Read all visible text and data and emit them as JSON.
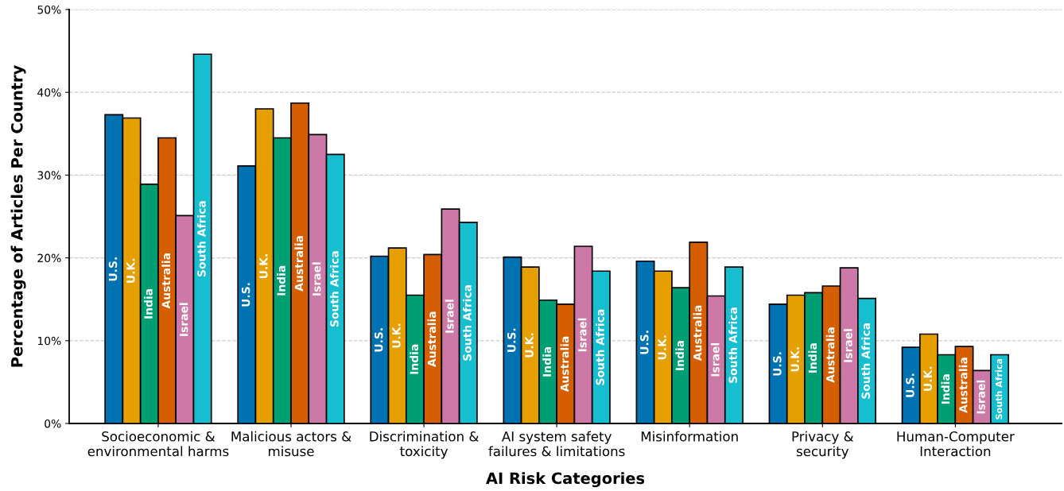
{
  "chart_data": {
    "type": "bar",
    "xlabel": "AI Risk Categories",
    "ylabel": "Percentage of Articles Per Country",
    "categories": [
      "Socioeconomic &\nenvironmental harms",
      "Malicious actors &\nmisuse",
      "Discrimination &\ntoxicity",
      "AI system safety\nfailures & limitations",
      "Misinformation",
      "Privacy &\nsecurity",
      "Human-Computer\nInteraction"
    ],
    "series": [
      {
        "name": "U.S.",
        "color": "#0072b2",
        "values": [
          37.3,
          31.1,
          20.2,
          20.1,
          19.6,
          14.4,
          9.2
        ]
      },
      {
        "name": "U.K.",
        "color": "#e69f00",
        "values": [
          36.9,
          38.0,
          21.2,
          18.9,
          18.4,
          15.5,
          10.8
        ]
      },
      {
        "name": "India",
        "color": "#009e73",
        "values": [
          28.9,
          34.5,
          15.5,
          14.9,
          16.4,
          15.8,
          8.3
        ]
      },
      {
        "name": "Australia",
        "color": "#d55e00",
        "values": [
          34.5,
          38.7,
          20.4,
          14.4,
          21.9,
          16.6,
          9.3
        ]
      },
      {
        "name": "Israel",
        "color": "#cc79a7",
        "values": [
          25.1,
          34.9,
          25.9,
          21.4,
          15.4,
          18.8,
          6.4
        ]
      },
      {
        "name": "South Africa",
        "color": "#17becf",
        "values": [
          44.6,
          32.5,
          24.3,
          18.4,
          18.9,
          15.1,
          8.3
        ]
      }
    ],
    "ylim": [
      0,
      50
    ],
    "yticks": [
      {
        "value": 0,
        "label": "0%"
      },
      {
        "value": 10,
        "label": "10%"
      },
      {
        "value": 20,
        "label": "20%"
      },
      {
        "value": 30,
        "label": "30%"
      },
      {
        "value": 40,
        "label": "40%"
      },
      {
        "value": 50,
        "label": "50%"
      }
    ],
    "grid": "y",
    "legend": false
  }
}
